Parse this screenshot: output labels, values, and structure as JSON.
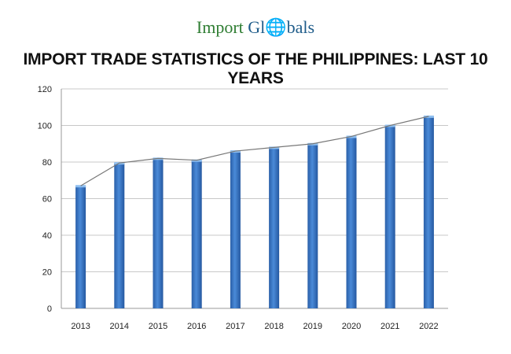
{
  "logo": {
    "part1": "Import",
    "part2": "Gl",
    "part3": "bals",
    "full": "Import Globals"
  },
  "chart_data": {
    "type": "bar",
    "title": "IMPORT TRADE STATISTICS OF THE PHILIPPINES: LAST 10 YEARS",
    "categories": [
      "2013",
      "2014",
      "2015",
      "2016",
      "2017",
      "2018",
      "2019",
      "2020",
      "2021",
      "2022"
    ],
    "values": [
      67,
      79.5,
      82,
      81,
      86,
      88,
      90,
      94,
      100,
      105
    ],
    "overlay_line": true,
    "xlabel": "",
    "ylabel": "",
    "ylim": [
      0,
      120
    ],
    "yticks": [
      0,
      20,
      40,
      60,
      80,
      100,
      120
    ],
    "grid": true,
    "bar_color": "#3a78c9",
    "line_color": "#777777"
  }
}
